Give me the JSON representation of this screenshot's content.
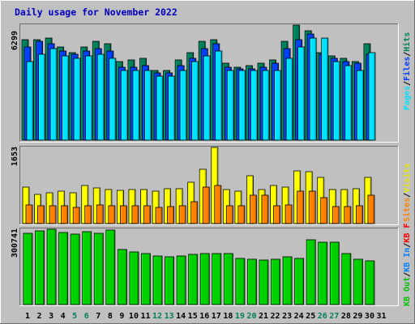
{
  "chart_data": [
    {
      "type": "bar",
      "panel": "hits-files-pages",
      "title": "Daily usage for November 2022",
      "y_max_label": "6299",
      "ylim": [
        0,
        6299
      ],
      "categories": [
        "1",
        "2",
        "3",
        "4",
        "5",
        "6",
        "7",
        "8",
        "9",
        "10",
        "11",
        "12",
        "13",
        "14",
        "15",
        "16",
        "17",
        "18",
        "19",
        "20",
        "21",
        "22",
        "23",
        "24",
        "25",
        "26",
        "27",
        "28",
        "29",
        "30",
        "31"
      ],
      "weekend_days": [
        "5",
        "6",
        "12",
        "13",
        "19",
        "20",
        "26",
        "27"
      ],
      "legend": [
        {
          "label": "Hits",
          "color": "#00805c"
        },
        {
          "label": "Files",
          "color": "#0040ff"
        },
        {
          "label": "Pages",
          "color": "#00e0ff"
        }
      ],
      "legend_separator": "/",
      "series": [
        {
          "name": "Hits",
          "color": "#00805c",
          "values": [
            5500,
            5500,
            5600,
            5100,
            4800,
            5100,
            5400,
            5300,
            4300,
            4400,
            4500,
            3800,
            3800,
            4400,
            4800,
            5400,
            5500,
            4200,
            4000,
            4100,
            4200,
            4400,
            5400,
            6300,
            6000,
            4800,
            4600,
            4500,
            4300,
            5300,
            0
          ]
        },
        {
          "name": "Files",
          "color": "#0040ff",
          "values": [
            5100,
            5400,
            5300,
            4900,
            4700,
            4900,
            5000,
            4900,
            4000,
            4000,
            4100,
            3700,
            3700,
            4100,
            4500,
            5000,
            5300,
            4000,
            3900,
            3900,
            4000,
            4200,
            5000,
            5500,
            5800,
            4700,
            4500,
            4300,
            4200,
            4700,
            0
          ]
        },
        {
          "name": "Pages",
          "color": "#00e0ff",
          "values": [
            4300,
            4700,
            5000,
            4600,
            4500,
            4600,
            4700,
            4500,
            3800,
            3800,
            3800,
            3500,
            3500,
            3800,
            4300,
            4600,
            4900,
            3800,
            3800,
            3800,
            3800,
            3800,
            4500,
            5100,
            5600,
            5600,
            4300,
            4100,
            3800,
            4800,
            0
          ]
        }
      ]
    },
    {
      "type": "bar",
      "panel": "visits-sites",
      "y_max_label": "1653",
      "ylim": [
        0,
        1653
      ],
      "categories": [
        "1",
        "2",
        "3",
        "4",
        "5",
        "6",
        "7",
        "8",
        "9",
        "10",
        "11",
        "12",
        "13",
        "14",
        "15",
        "16",
        "17",
        "18",
        "19",
        "20",
        "21",
        "22",
        "23",
        "24",
        "25",
        "26",
        "27",
        "28",
        "29",
        "30",
        "31"
      ],
      "legend": [
        {
          "label": "Visits",
          "color": "#e8e800"
        },
        {
          "label": "Sites",
          "color": "#ff8000"
        }
      ],
      "legend_separator": "/",
      "series": [
        {
          "name": "Visits",
          "color": "#ffff00",
          "values": [
            790,
            630,
            670,
            710,
            670,
            820,
            780,
            730,
            720,
            740,
            740,
            710,
            750,
            750,
            900,
            1170,
            1653,
            730,
            700,
            1030,
            740,
            830,
            790,
            1150,
            1130,
            1000,
            730,
            730,
            750,
            1000,
            0
          ]
        },
        {
          "name": "Sites",
          "color": "#ff8000",
          "values": [
            400,
            390,
            390,
            380,
            360,
            380,
            400,
            390,
            390,
            380,
            380,
            360,
            370,
            380,
            470,
            800,
            830,
            380,
            390,
            620,
            620,
            390,
            400,
            700,
            700,
            560,
            370,
            370,
            380,
            610,
            0
          ]
        }
      ]
    },
    {
      "type": "bar",
      "panel": "kbytes",
      "y_max_label": "300741",
      "ylim": [
        0,
        300741
      ],
      "categories": [
        "1",
        "2",
        "3",
        "4",
        "5",
        "6",
        "7",
        "8",
        "9",
        "10",
        "11",
        "12",
        "13",
        "14",
        "15",
        "16",
        "17",
        "18",
        "19",
        "20",
        "21",
        "22",
        "23",
        "24",
        "25",
        "26",
        "27",
        "28",
        "29",
        "30",
        "31"
      ],
      "legend": [
        {
          "label": "KB F",
          "color": "#ff0000"
        },
        {
          "label": "KB In",
          "color": "#0080ff"
        },
        {
          "label": "KB Out",
          "color": "#00c000"
        }
      ],
      "legend_separator": "/",
      "series": [
        {
          "name": "KB F",
          "color": "#ff0000",
          "values": [
            0,
            0,
            0,
            0,
            0,
            0,
            0,
            0,
            0,
            0,
            0,
            0,
            0,
            0,
            0,
            0,
            0,
            0,
            0,
            0,
            0,
            0,
            0,
            0,
            0,
            0,
            0,
            0,
            0,
            0,
            0
          ]
        },
        {
          "name": "KB In",
          "color": "#0080ff",
          "values": [
            0,
            0,
            0,
            0,
            0,
            0,
            0,
            0,
            0,
            0,
            0,
            0,
            0,
            0,
            0,
            0,
            0,
            0,
            0,
            0,
            0,
            0,
            0,
            0,
            0,
            0,
            0,
            0,
            0,
            0,
            0
          ]
        },
        {
          "name": "KB Out",
          "color": "#00d000",
          "values": [
            285000,
            295000,
            300741,
            288000,
            280000,
            290000,
            285000,
            298000,
            220000,
            210000,
            205000,
            195000,
            190000,
            195000,
            200000,
            205000,
            205000,
            205000,
            185000,
            180000,
            178000,
            182000,
            190000,
            185000,
            260000,
            250000,
            250000,
            205000,
            180000,
            175000,
            0
          ]
        }
      ]
    }
  ]
}
